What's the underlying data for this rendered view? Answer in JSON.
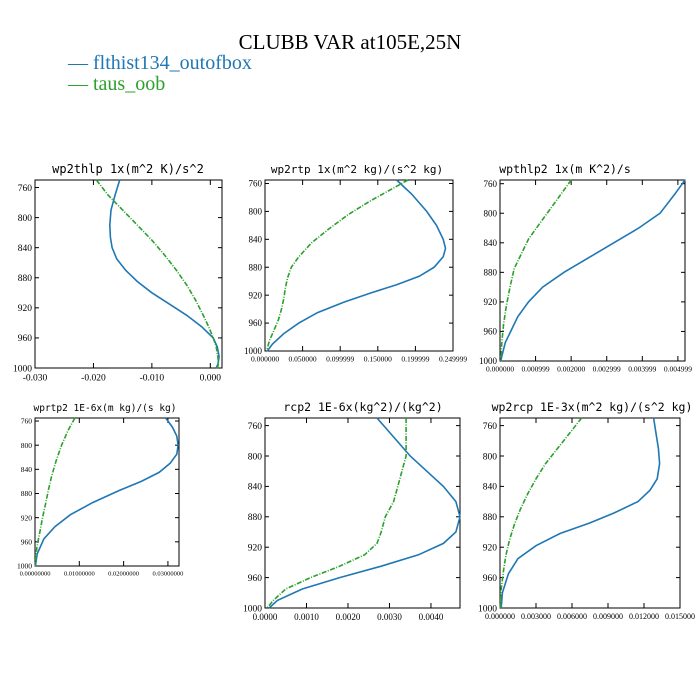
{
  "title": "CLUBB VAR at105E,25N",
  "legend": [
    {
      "label": "— flthist134_outofbox",
      "color": "#1f77b4"
    },
    {
      "label": "— taus_oob",
      "color": "#2ca02c"
    }
  ],
  "chart_data": [
    {
      "type": "line",
      "title": "wp2thlp  1x(m^2 K)/s^2",
      "ylim": [
        1000,
        750
      ],
      "xlim": [
        -0.03,
        0.002
      ],
      "yticks": [
        "760",
        "800",
        "840",
        "880",
        "920",
        "960",
        "1000"
      ],
      "yticks_values": [
        760,
        800,
        840,
        880,
        920,
        960,
        1000
      ],
      "xticks": [
        "-0.030",
        "-0.020",
        "-0.010",
        "0.000"
      ],
      "xticks_values": [
        -0.03,
        -0.02,
        -0.01,
        0.0
      ],
      "series": [
        {
          "name": "flthist134_outofbox",
          "color": "#1f77b4",
          "x": [
            -0.0155,
            -0.0163,
            -0.017,
            -0.0172,
            -0.0171,
            -0.0168,
            -0.016,
            -0.0145,
            -0.0125,
            -0.01,
            -0.007,
            -0.004,
            -0.0015,
            0.0005,
            0.0012,
            0.0015,
            0.0013,
            0.001
          ],
          "y": [
            750,
            770,
            790,
            810,
            826,
            840,
            855,
            870,
            885,
            900,
            915,
            930,
            945,
            960,
            972,
            985,
            995,
            1000
          ]
        },
        {
          "name": "taus_oob",
          "color": "#2ca02c",
          "x": [
            -0.0195,
            -0.0175,
            -0.015,
            -0.0125,
            -0.01,
            -0.0078,
            -0.0058,
            -0.004,
            -0.0025,
            -0.0012,
            -0.0003,
            0.0005,
            0.001,
            0.0013,
            0.0014,
            0.0012
          ],
          "y": [
            750,
            770,
            790,
            810,
            830,
            850,
            870,
            890,
            910,
            930,
            945,
            960,
            972,
            985,
            995,
            1000
          ]
        }
      ]
    },
    {
      "type": "line",
      "title": "wp2rtp  1x(m^2 kg)/(s^2 kg)",
      "ylim": [
        1000,
        755
      ],
      "xlim": [
        0.0,
        0.25
      ],
      "yticks": [
        "760",
        "800",
        "840",
        "880",
        "920",
        "960",
        "1000"
      ],
      "yticks_values": [
        760,
        800,
        840,
        880,
        920,
        960,
        1000
      ],
      "xticks": [
        "0.000000",
        "0.050000",
        "0.099999",
        "0.150000",
        "0.199999",
        "0.249999"
      ],
      "xticks_values": [
        0.0,
        0.05,
        0.1,
        0.15,
        0.2,
        0.25
      ],
      "series": [
        {
          "name": "flthist134_outofbox",
          "color": "#1f77b4",
          "x": [
            0.175,
            0.195,
            0.215,
            0.228,
            0.237,
            0.24,
            0.237,
            0.225,
            0.205,
            0.175,
            0.14,
            0.105,
            0.07,
            0.045,
            0.025,
            0.01,
            0.003
          ],
          "y": [
            755,
            775,
            800,
            820,
            840,
            853,
            865,
            880,
            893,
            905,
            917,
            930,
            945,
            960,
            975,
            990,
            1000
          ]
        },
        {
          "name": "taus_oob",
          "color": "#2ca02c",
          "x": [
            0.19,
            0.165,
            0.14,
            0.11,
            0.085,
            0.062,
            0.045,
            0.035,
            0.03,
            0.027,
            0.025,
            0.022,
            0.018,
            0.012,
            0.006,
            0.002
          ],
          "y": [
            755,
            770,
            785,
            805,
            825,
            845,
            865,
            880,
            895,
            910,
            925,
            940,
            955,
            970,
            985,
            1000
          ]
        }
      ]
    },
    {
      "type": "line",
      "title": "wpthlp2  1x(m K^2)/s",
      "ylim": [
        1000,
        755
      ],
      "xlim": [
        0.0,
        0.0052
      ],
      "yticks": [
        "760",
        "800",
        "840",
        "880",
        "920",
        "960",
        "1000"
      ],
      "yticks_values": [
        760,
        800,
        840,
        880,
        920,
        960,
        1000
      ],
      "xticks": [
        "0.000000",
        "0.000999",
        "0.002000",
        "0.002999",
        "0.003999",
        "0.004999"
      ],
      "xticks_values": [
        0.0,
        0.001,
        0.002,
        0.003,
        0.004,
        0.005
      ],
      "series": [
        {
          "name": "flthist134_outofbox",
          "color": "#1f77b4",
          "x": [
            0.0052,
            0.0049,
            0.0045,
            0.0039,
            0.0032,
            0.0025,
            0.0018,
            0.0012,
            0.0008,
            0.0005,
            0.0003,
            0.00015,
            7e-05,
            2e-05
          ],
          "y": [
            755,
            775,
            800,
            820,
            840,
            860,
            880,
            900,
            920,
            940,
            960,
            975,
            990,
            1000
          ]
        },
        {
          "name": "taus_oob",
          "color": "#2ca02c",
          "x": [
            0.002,
            0.0017,
            0.0014,
            0.0011,
            0.0008,
            0.0006,
            0.0004,
            0.00028,
            0.00018,
            0.0001,
            5e-05,
            2e-05
          ],
          "y": [
            755,
            775,
            795,
            815,
            835,
            855,
            875,
            900,
            925,
            950,
            975,
            1000
          ]
        }
      ]
    },
    {
      "type": "line",
      "title": "wprtp2  1E-6x(m kg)/(s kg)",
      "ylim": [
        1000,
        755
      ],
      "xlim": [
        0.0,
        0.0325
      ],
      "yticks": [
        "760",
        "800",
        "840",
        "880",
        "920",
        "960",
        "1000"
      ],
      "yticks_values": [
        760,
        800,
        840,
        880,
        920,
        960,
        1000
      ],
      "xticks": [
        "0.00000000",
        "0.01000000",
        "0.02000000",
        "0.03000000"
      ],
      "xticks_values": [
        0.0,
        0.01,
        0.02,
        0.03
      ],
      "series": [
        {
          "name": "flthist134_outofbox",
          "color": "#1f77b4",
          "x": [
            0.0295,
            0.031,
            0.032,
            0.0323,
            0.032,
            0.0305,
            0.028,
            0.024,
            0.019,
            0.013,
            0.008,
            0.0045,
            0.002,
            0.0005,
            0.0001
          ],
          "y": [
            755,
            770,
            785,
            800,
            815,
            830,
            845,
            860,
            875,
            895,
            915,
            935,
            955,
            980,
            1000
          ]
        },
        {
          "name": "taus_oob",
          "color": "#2ca02c",
          "x": [
            0.009,
            0.0075,
            0.006,
            0.0048,
            0.0038,
            0.003,
            0.0023,
            0.0017,
            0.0012,
            0.0008,
            0.0004,
            0.0002,
            5e-05
          ],
          "y": [
            755,
            775,
            800,
            825,
            850,
            875,
            900,
            920,
            940,
            955,
            970,
            985,
            1000
          ]
        }
      ]
    },
    {
      "type": "line",
      "title": "rcp2  1E-6x(kg^2)/(kg^2)",
      "ylim": [
        1000,
        750
      ],
      "xlim": [
        0.0,
        0.0047
      ],
      "yticks": [
        "760",
        "800",
        "840",
        "880",
        "920",
        "960",
        "1000"
      ],
      "yticks_values": [
        760,
        800,
        840,
        880,
        920,
        960,
        1000
      ],
      "xticks": [
        "0.0000",
        "0.0010",
        "0.0020",
        "0.0030",
        "0.0040"
      ],
      "xticks_values": [
        0.0,
        0.001,
        0.002,
        0.003,
        0.004
      ],
      "series": [
        {
          "name": "flthist134_outofbox",
          "color": "#1f77b4",
          "x": [
            0.0027,
            0.0031,
            0.0035,
            0.0039,
            0.0043,
            0.0046,
            0.0047,
            0.0046,
            0.0043,
            0.0037,
            0.0028,
            0.0018,
            0.0009,
            0.0003,
            0.0001
          ],
          "y": [
            750,
            775,
            800,
            820,
            840,
            860,
            880,
            900,
            915,
            930,
            945,
            960,
            975,
            990,
            1000
          ]
        },
        {
          "name": "taus_oob",
          "color": "#2ca02c",
          "x": [
            0.0034,
            0.0034,
            0.0034,
            0.0033,
            0.0032,
            0.0031,
            0.0029,
            0.0028,
            0.0027,
            0.0024,
            0.0018,
            0.0011,
            0.0005,
            0.0002,
            5e-05
          ],
          "y": [
            750,
            775,
            800,
            820,
            840,
            860,
            880,
            900,
            915,
            930,
            945,
            960,
            975,
            990,
            1000
          ]
        }
      ]
    },
    {
      "type": "line",
      "title": "wp2rcp  1E-3x(m^2 kg)/(s^2 kg)",
      "ylim": [
        1000,
        750
      ],
      "xlim": [
        0.0,
        0.015
      ],
      "yticks": [
        "760",
        "800",
        "840",
        "880",
        "920",
        "960",
        "1000"
      ],
      "yticks_values": [
        760,
        800,
        840,
        880,
        920,
        960,
        1000
      ],
      "xticks": [
        "0.000000",
        "0.003000",
        "0.006000",
        "0.009000",
        "0.012000",
        "0.015000"
      ],
      "xticks_values": [
        0.0,
        0.003,
        0.006,
        0.009,
        0.012,
        0.015
      ],
      "series": [
        {
          "name": "flthist134_outofbox",
          "color": "#1f77b4",
          "x": [
            0.0128,
            0.013,
            0.0132,
            0.0133,
            0.0131,
            0.0125,
            0.0115,
            0.0095,
            0.0075,
            0.005,
            0.003,
            0.0015,
            0.0007,
            0.0002,
            0.0001
          ],
          "y": [
            750,
            770,
            790,
            810,
            830,
            845,
            860,
            875,
            888,
            902,
            918,
            935,
            955,
            980,
            1000
          ]
        },
        {
          "name": "taus_oob",
          "color": "#2ca02c",
          "x": [
            0.0068,
            0.0058,
            0.0048,
            0.0038,
            0.003,
            0.0023,
            0.0017,
            0.0012,
            0.0008,
            0.0005,
            0.0003,
            0.0001,
            3e-05
          ],
          "y": [
            750,
            770,
            790,
            810,
            830,
            850,
            870,
            890,
            910,
            930,
            950,
            975,
            1000
          ]
        }
      ]
    }
  ]
}
